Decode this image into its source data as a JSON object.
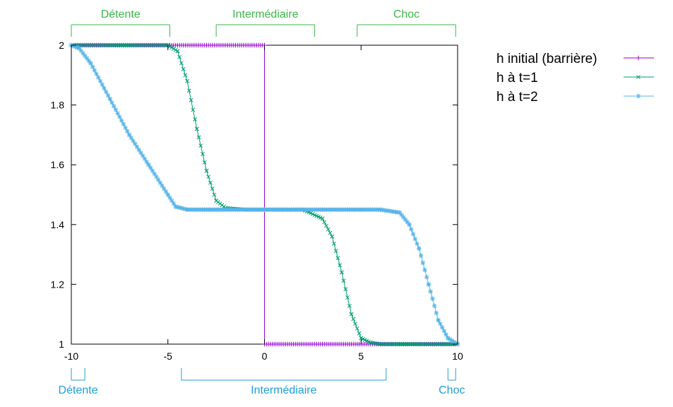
{
  "chart_data": {
    "type": "line",
    "xlim": [
      -10,
      10
    ],
    "ylim": [
      1,
      2
    ],
    "xticks": [
      "-10",
      "-5",
      "0",
      "5",
      "10"
    ],
    "yticks": [
      "1",
      "1.2",
      "1.4",
      "1.6",
      "1.8",
      "2"
    ],
    "grid": false,
    "legend_position": "right",
    "series": [
      {
        "name": "h initial (barrière)",
        "color": "#9400d3",
        "marker": "plus",
        "x": [
          -10,
          0,
          0,
          10
        ],
        "y": [
          2,
          2,
          1,
          1
        ]
      },
      {
        "name": "h à t=1",
        "color": "#009e73",
        "marker": "x",
        "x": [
          -10,
          -5,
          -4.5,
          -4,
          -3.5,
          -3,
          -2.5,
          -2,
          -1,
          0,
          1,
          2,
          3,
          3.5,
          4,
          4.5,
          5,
          5.5,
          6,
          8,
          10
        ],
        "y": [
          2,
          2,
          1.98,
          1.88,
          1.72,
          1.58,
          1.48,
          1.455,
          1.45,
          1.45,
          1.45,
          1.45,
          1.42,
          1.36,
          1.24,
          1.1,
          1.02,
          1.005,
          1,
          1,
          1
        ]
      },
      {
        "name": "h à t=2",
        "color": "#56b4e9",
        "marker": "star",
        "x": [
          -10,
          -9.6,
          -9,
          -8,
          -7,
          -6,
          -5,
          -4.6,
          -4,
          -3,
          0,
          3,
          5,
          6,
          7,
          7.5,
          8,
          8.5,
          9,
          9.5,
          10
        ],
        "y": [
          2,
          1.99,
          1.94,
          1.82,
          1.7,
          1.6,
          1.5,
          1.46,
          1.45,
          1.45,
          1.45,
          1.45,
          1.45,
          1.45,
          1.44,
          1.4,
          1.32,
          1.2,
          1.08,
          1.02,
          1
        ]
      }
    ],
    "regions_top": [
      {
        "label": "Détente",
        "x0": -10,
        "x1": -4.9,
        "color": "#3cb64a"
      },
      {
        "label": "Intermédiaire",
        "x0": -2.5,
        "x1": 2.6,
        "color": "#3cb64a"
      },
      {
        "label": "Choc",
        "x0": 4.8,
        "x1": 9.9,
        "color": "#3cb64a"
      }
    ],
    "regions_bottom": [
      {
        "label": "Détente",
        "x0": -10,
        "x1": -9.3,
        "color": "#1e9fd6"
      },
      {
        "label": "Intermédiaire",
        "x0": -4.3,
        "x1": 6.3,
        "color": "#1e9fd6"
      },
      {
        "label": "Choc",
        "x0": 9.5,
        "x1": 9.9,
        "color": "#1e9fd6"
      }
    ]
  }
}
